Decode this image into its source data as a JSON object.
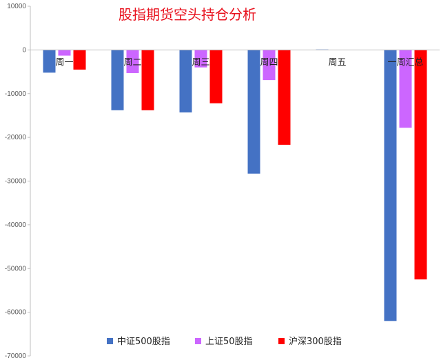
{
  "chart_data": {
    "type": "bar",
    "title": "股指期货空头持仓分析",
    "categories": [
      "周一",
      "周二",
      "周三",
      "周四",
      "周五",
      "一周汇总"
    ],
    "series": [
      {
        "name": "中证500股指",
        "color": "#4472c4",
        "values": [
          -5200,
          -13800,
          -14300,
          -28300,
          100,
          -62000
        ]
      },
      {
        "name": "上证50股指",
        "color": "#cc66ff",
        "values": [
          -1300,
          -5300,
          -4000,
          -6900,
          0,
          -17800
        ]
      },
      {
        "name": "沪深300股指",
        "color": "#ff0000",
        "values": [
          -4500,
          -13800,
          -12200,
          -21700,
          0,
          -52500
        ]
      }
    ],
    "ylim": [
      -70000,
      10000
    ],
    "yticks": [
      10000,
      0,
      -10000,
      -20000,
      -30000,
      -40000,
      -50000,
      -60000,
      -70000
    ],
    "legend_position": "bottom",
    "grid": false
  }
}
